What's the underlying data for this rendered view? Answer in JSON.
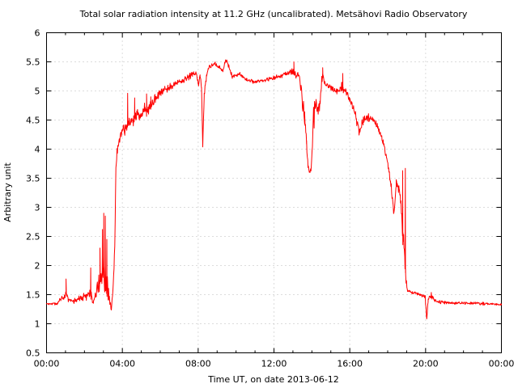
{
  "window": {
    "background": "#ffffff"
  },
  "chart_data": {
    "type": "line",
    "title": "Total solar radiation intensity at 11.2 GHz (uncalibrated). Metsähovi Radio Observatory",
    "xlabel": "Time UT, on date 2013-06-12",
    "ylabel": "Arbitrary unit",
    "xlim": [
      0,
      24
    ],
    "ylim": [
      0.5,
      6
    ],
    "grid": true,
    "grid_color": "#b9b9b9",
    "border_color": "#000000",
    "legend": "none",
    "xticks": [
      {
        "h": 0,
        "label": "00:00"
      },
      {
        "h": 4,
        "label": "04:00"
      },
      {
        "h": 8,
        "label": "08:00"
      },
      {
        "h": 12,
        "label": "12:00"
      },
      {
        "h": 16,
        "label": "16:00"
      },
      {
        "h": 20,
        "label": "20:00"
      },
      {
        "h": 24,
        "label": "00:00"
      }
    ],
    "x_minor_step_hours": 1,
    "yticks": [
      {
        "v": 0.5,
        "label": "0.5"
      },
      {
        "v": 1,
        "label": "1"
      },
      {
        "v": 1.5,
        "label": "1.5"
      },
      {
        "v": 2,
        "label": "2"
      },
      {
        "v": 2.5,
        "label": "2.5"
      },
      {
        "v": 3,
        "label": "3"
      },
      {
        "v": 3.5,
        "label": "3.5"
      },
      {
        "v": 4,
        "label": "4"
      },
      {
        "v": 4.5,
        "label": "4.5"
      },
      {
        "v": 5,
        "label": "5"
      },
      {
        "v": 5.5,
        "label": "5.5"
      },
      {
        "v": 6,
        "label": "6"
      }
    ],
    "series": [
      {
        "name": "total-solar-radiation-11.2GHz",
        "color": "#ff0000",
        "seed": 20130612,
        "sample_step_hours": 0.02,
        "anchors": [
          [
            0.0,
            1.34,
            0.025
          ],
          [
            0.55,
            1.35,
            0.03
          ],
          [
            0.75,
            1.42,
            0.05
          ],
          [
            0.95,
            1.48,
            0.09
          ],
          [
            1.05,
            1.52,
            0.14
          ],
          [
            1.15,
            1.4,
            0.05
          ],
          [
            1.45,
            1.39,
            0.05
          ],
          [
            1.8,
            1.43,
            0.07
          ],
          [
            2.1,
            1.47,
            0.09
          ],
          [
            2.3,
            1.55,
            0.16
          ],
          [
            2.45,
            1.35,
            0.06
          ],
          [
            2.6,
            1.5,
            0.15
          ],
          [
            2.8,
            1.72,
            0.3
          ],
          [
            3.0,
            1.95,
            0.48
          ],
          [
            3.15,
            1.78,
            0.4
          ],
          [
            3.3,
            1.42,
            0.12
          ],
          [
            3.42,
            1.28,
            0.05
          ],
          [
            3.52,
            1.6,
            0.12
          ],
          [
            3.6,
            2.4,
            0.2
          ],
          [
            3.66,
            3.6,
            0.15
          ],
          [
            3.72,
            3.98,
            0.08
          ],
          [
            3.8,
            4.08,
            0.07
          ],
          [
            3.95,
            4.28,
            0.09
          ],
          [
            4.15,
            4.35,
            0.12
          ],
          [
            4.3,
            4.42,
            0.16
          ],
          [
            4.5,
            4.48,
            0.15
          ],
          [
            4.7,
            4.55,
            0.17
          ],
          [
            4.95,
            4.6,
            0.15
          ],
          [
            5.2,
            4.65,
            0.17
          ],
          [
            5.5,
            4.75,
            0.12
          ],
          [
            5.8,
            4.88,
            0.1
          ],
          [
            6.1,
            4.98,
            0.08
          ],
          [
            6.5,
            5.07,
            0.07
          ],
          [
            6.9,
            5.14,
            0.06
          ],
          [
            7.3,
            5.2,
            0.06
          ],
          [
            7.7,
            5.28,
            0.06
          ],
          [
            7.9,
            5.32,
            0.05
          ],
          [
            8.02,
            5.1,
            0.05
          ],
          [
            8.1,
            5.28,
            0.05
          ],
          [
            8.18,
            5.05,
            0.06
          ],
          [
            8.24,
            4.03,
            0.04
          ],
          [
            8.32,
            4.95,
            0.08
          ],
          [
            8.45,
            5.3,
            0.07
          ],
          [
            8.6,
            5.43,
            0.05
          ],
          [
            8.9,
            5.46,
            0.05
          ],
          [
            9.15,
            5.38,
            0.05
          ],
          [
            9.3,
            5.35,
            0.05
          ],
          [
            9.45,
            5.54,
            0.04
          ],
          [
            9.6,
            5.44,
            0.05
          ],
          [
            9.8,
            5.24,
            0.05
          ],
          [
            10.0,
            5.26,
            0.05
          ],
          [
            10.2,
            5.3,
            0.04
          ],
          [
            10.45,
            5.22,
            0.04
          ],
          [
            10.9,
            5.16,
            0.04
          ],
          [
            11.4,
            5.18,
            0.04
          ],
          [
            11.9,
            5.22,
            0.04
          ],
          [
            12.4,
            5.27,
            0.05
          ],
          [
            12.85,
            5.33,
            0.06
          ],
          [
            13.1,
            5.3,
            0.09
          ],
          [
            13.35,
            5.24,
            0.07
          ],
          [
            13.5,
            4.8,
            0.15
          ],
          [
            13.62,
            4.55,
            0.2
          ],
          [
            13.72,
            4.1,
            0.12
          ],
          [
            13.8,
            3.68,
            0.06
          ],
          [
            13.95,
            3.62,
            0.05
          ],
          [
            14.1,
            4.5,
            0.35
          ],
          [
            14.25,
            4.8,
            0.25
          ],
          [
            14.4,
            4.72,
            0.2
          ],
          [
            14.55,
            5.25,
            0.12
          ],
          [
            14.7,
            5.1,
            0.08
          ],
          [
            15.0,
            5.06,
            0.06
          ],
          [
            15.35,
            5.0,
            0.06
          ],
          [
            15.6,
            5.08,
            0.12
          ],
          [
            15.85,
            4.95,
            0.06
          ],
          [
            16.1,
            4.78,
            0.07
          ],
          [
            16.35,
            4.52,
            0.09
          ],
          [
            16.5,
            4.28,
            0.1
          ],
          [
            16.7,
            4.48,
            0.08
          ],
          [
            16.95,
            4.55,
            0.08
          ],
          [
            17.2,
            4.5,
            0.07
          ],
          [
            17.45,
            4.4,
            0.08
          ],
          [
            17.7,
            4.18,
            0.08
          ],
          [
            17.95,
            3.85,
            0.08
          ],
          [
            18.15,
            3.45,
            0.08
          ],
          [
            18.33,
            2.9,
            0.1
          ],
          [
            18.45,
            3.4,
            0.18
          ],
          [
            18.6,
            3.3,
            0.15
          ],
          [
            18.72,
            3.0,
            0.25
          ],
          [
            18.8,
            2.5,
            0.2
          ],
          [
            18.88,
            2.3,
            0.15
          ],
          [
            18.95,
            1.8,
            0.1
          ],
          [
            19.05,
            1.56,
            0.03
          ],
          [
            19.4,
            1.53,
            0.03
          ],
          [
            19.75,
            1.5,
            0.035
          ],
          [
            19.98,
            1.45,
            0.05
          ],
          [
            20.07,
            1.08,
            0.1
          ],
          [
            20.14,
            1.42,
            0.05
          ],
          [
            20.3,
            1.49,
            0.07
          ],
          [
            20.5,
            1.4,
            0.04
          ],
          [
            20.8,
            1.37,
            0.035
          ],
          [
            21.5,
            1.36,
            0.03
          ],
          [
            22.5,
            1.35,
            0.03
          ],
          [
            23.5,
            1.34,
            0.03
          ],
          [
            24.0,
            1.33,
            0.02
          ]
        ],
        "spikes": [
          [
            1.03,
            1.77
          ],
          [
            2.33,
            1.96
          ],
          [
            2.82,
            2.3
          ],
          [
            2.95,
            2.62
          ],
          [
            3.02,
            2.9
          ],
          [
            3.1,
            2.85
          ],
          [
            3.18,
            2.45
          ],
          [
            4.28,
            4.96
          ],
          [
            4.65,
            4.88
          ],
          [
            5.28,
            4.95
          ],
          [
            5.5,
            4.9
          ],
          [
            13.05,
            5.5
          ],
          [
            14.57,
            5.4
          ],
          [
            15.63,
            5.3
          ],
          [
            18.79,
            3.63
          ],
          [
            18.93,
            3.67
          ]
        ]
      }
    ]
  }
}
